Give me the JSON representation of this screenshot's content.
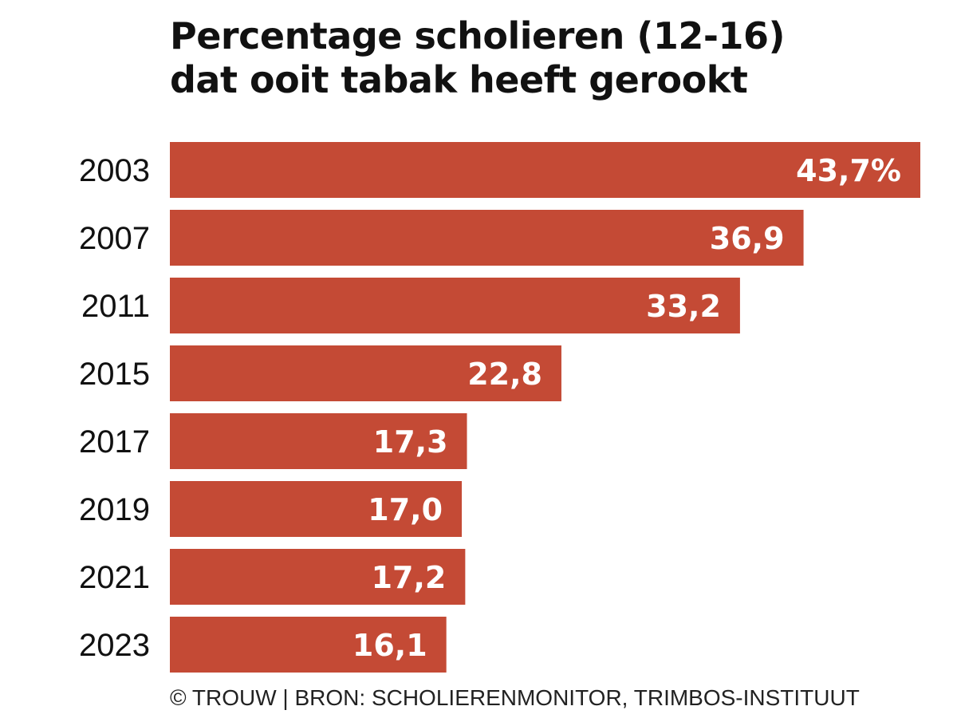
{
  "header": {
    "title_line1": "Percentage scholieren (12-16)",
    "title_line2": "dat ooit tabak heeft gerookt"
  },
  "footer": {
    "source": "© TROUW | BRON: SCHOLIERENMONITOR, TRIMBOS-INSTITUUT"
  },
  "chart_data": {
    "type": "bar",
    "orientation": "horizontal",
    "title": "Percentage scholieren (12-16) dat ooit tabak heeft gerookt",
    "categories": [
      "2003",
      "2007",
      "2011",
      "2015",
      "2017",
      "2019",
      "2021",
      "2023"
    ],
    "values": [
      43.7,
      36.9,
      33.2,
      22.8,
      17.3,
      17.0,
      17.2,
      16.1
    ],
    "value_labels": [
      "43,7%",
      "36,9",
      "33,2",
      "22,8",
      "17,3",
      "17,0",
      "17,2",
      "16,1"
    ],
    "xlim": [
      0,
      43.7
    ],
    "grid": false,
    "bar_color": "#c44a35",
    "label_color": "#ffffff"
  }
}
